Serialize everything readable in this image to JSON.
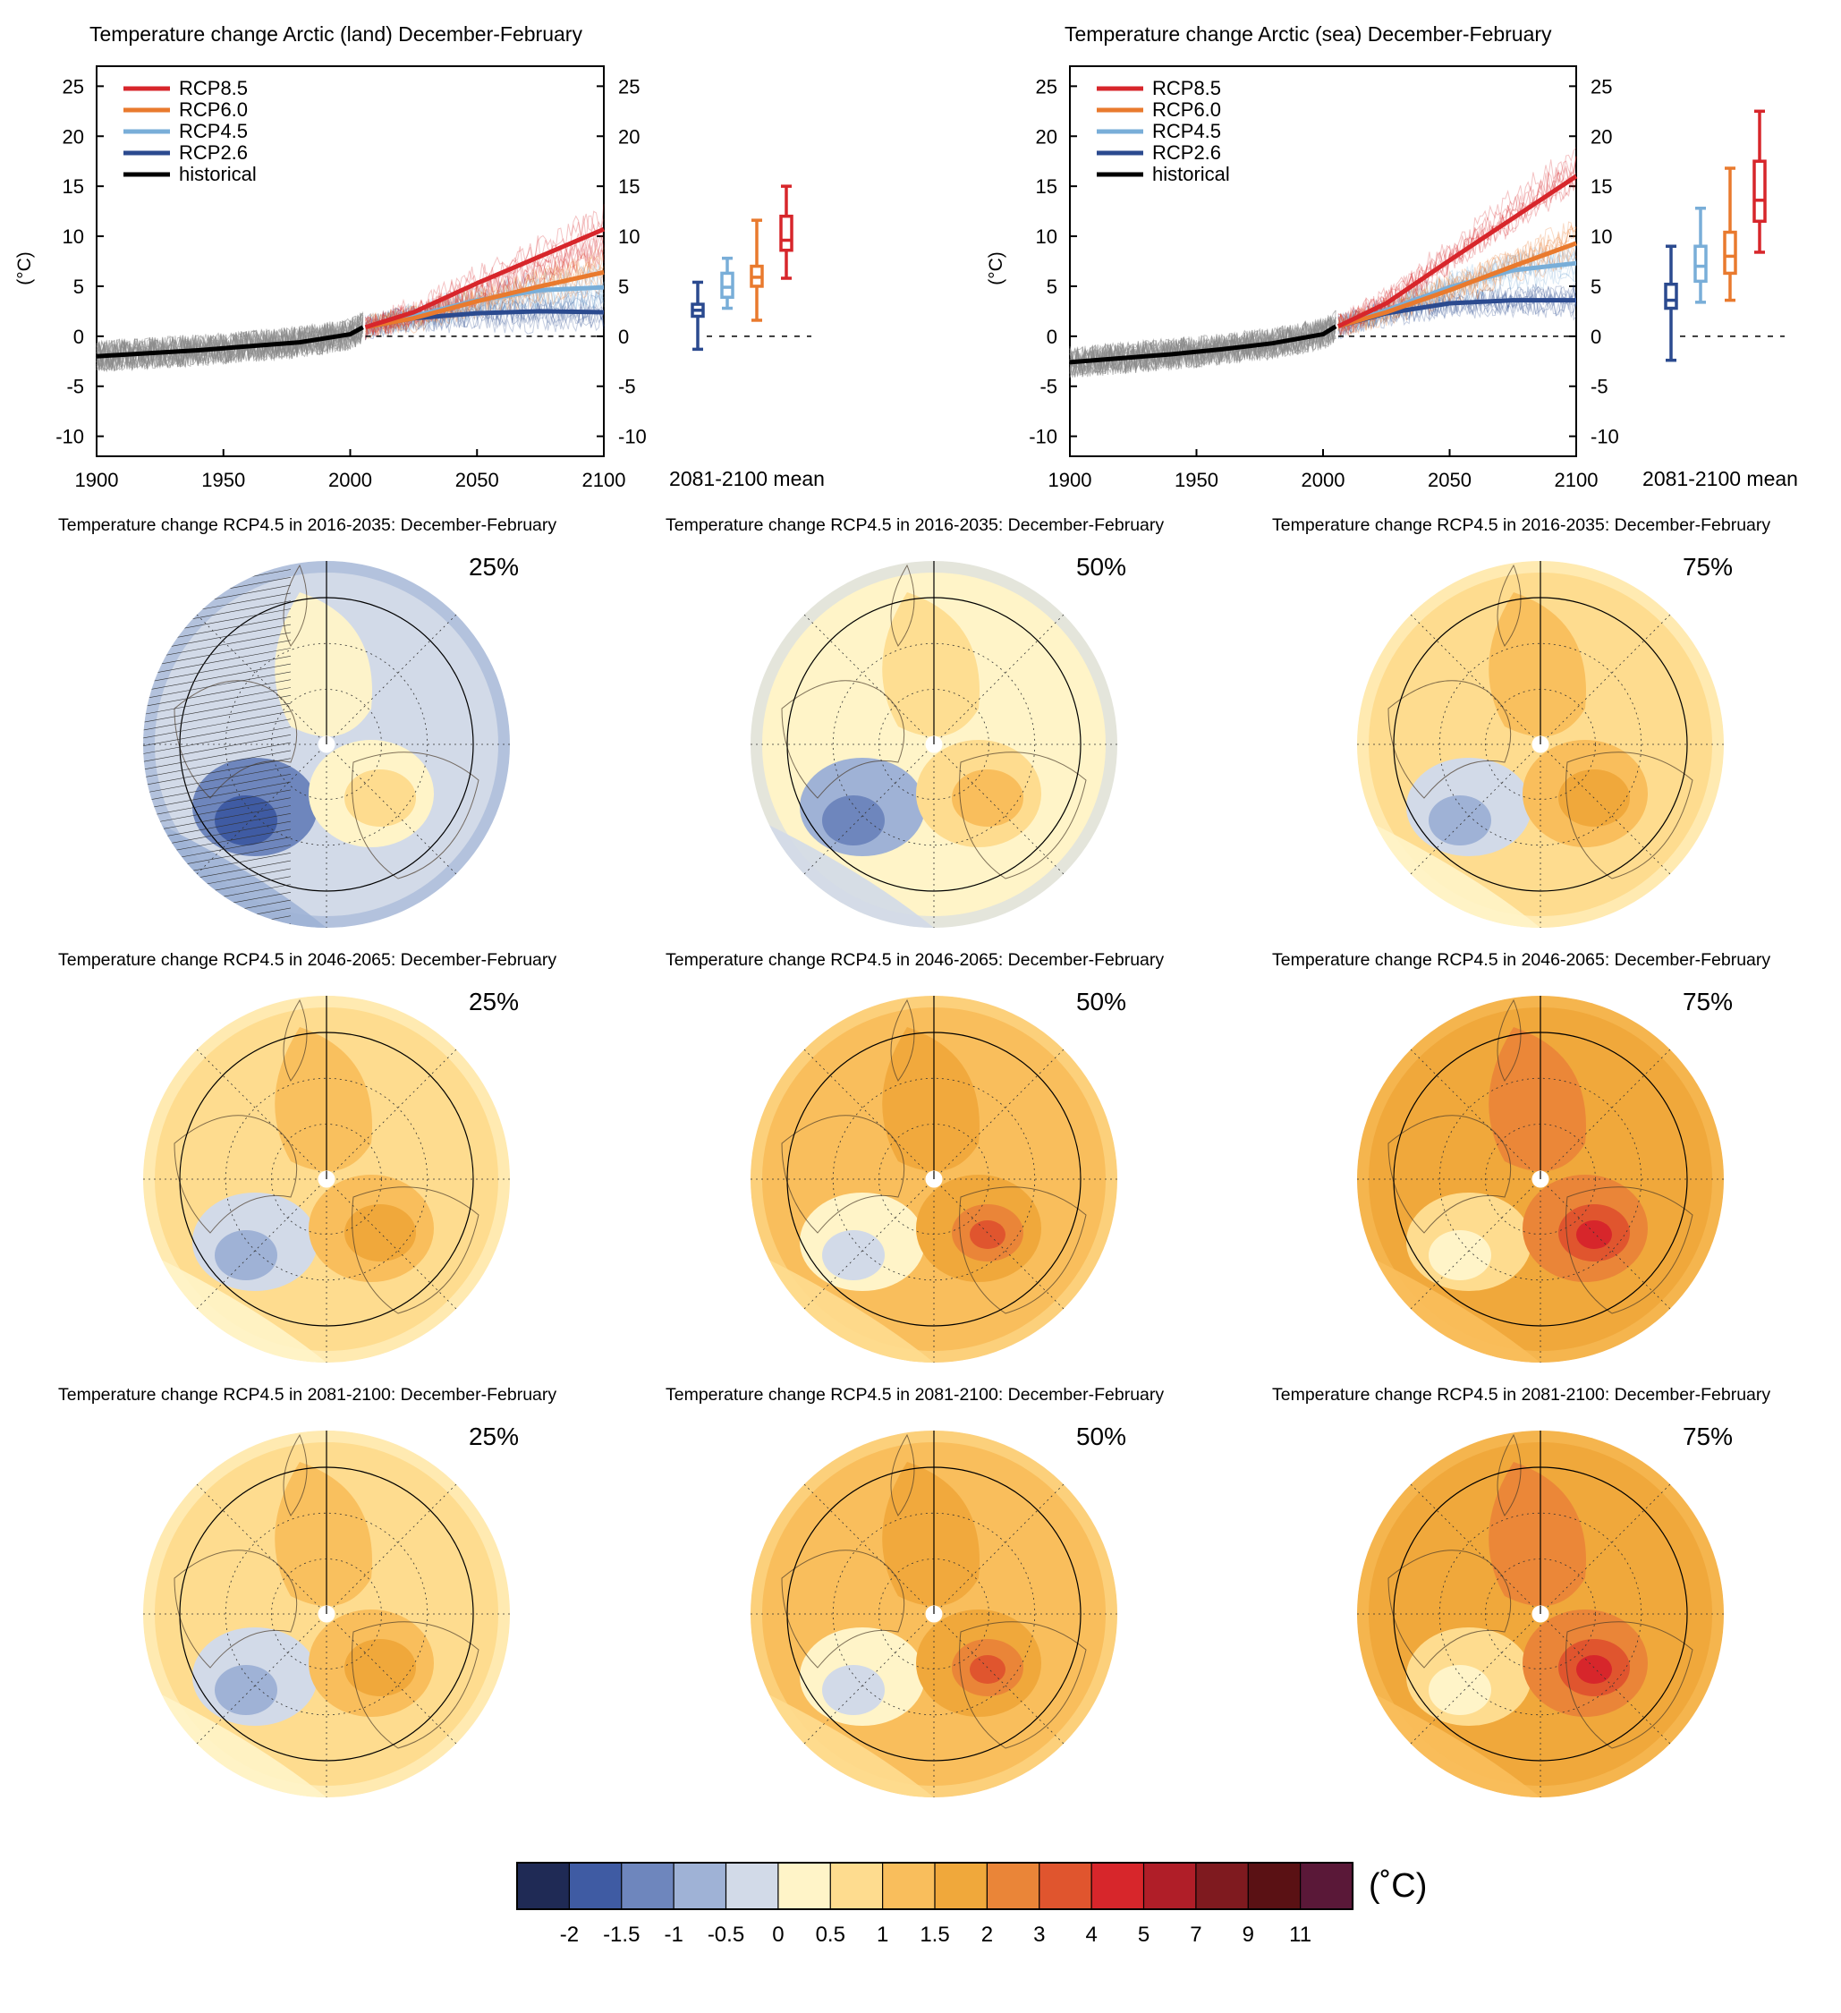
{
  "colors": {
    "rcp85": "#d7262b",
    "rcp60": "#e97a2e",
    "rcp45": "#79aed8",
    "rcp26": "#2b4a8f",
    "historical": "#000000",
    "historical_spread": "#8a8a8a"
  },
  "timeseries_panels": [
    {
      "title": "Temperature change Arctic (land) December-February",
      "ylabel": "(°C)",
      "xticks": [
        "1900",
        "1950",
        "2000",
        "2050",
        "2100"
      ],
      "yticks": [
        "25",
        "20",
        "15",
        "10",
        "5",
        "0",
        "-5",
        "-10"
      ],
      "boxplot_label": "2081-2100 mean",
      "legend": [
        "RCP8.5",
        "RCP6.0",
        "RCP4.5",
        "RCP2.6",
        "historical"
      ]
    },
    {
      "title": "Temperature change Arctic (sea) December-February",
      "ylabel": "(°C)",
      "xticks": [
        "1900",
        "1950",
        "2000",
        "2050",
        "2100"
      ],
      "yticks": [
        "25",
        "20",
        "15",
        "10",
        "5",
        "0",
        "-5",
        "-10"
      ],
      "boxplot_label": "2081-2100 mean",
      "legend": [
        "RCP8.5",
        "RCP6.0",
        "RCP4.5",
        "RCP2.6",
        "historical"
      ]
    }
  ],
  "chart_data": [
    {
      "type": "line",
      "title": "Temperature change Arctic (land) December-February",
      "ylabel": "(°C)",
      "xlim": [
        1900,
        2100
      ],
      "ylim": [
        -12,
        27
      ],
      "legend_position": "top-left",
      "series": [
        {
          "name": "historical",
          "x": [
            1900,
            1920,
            1940,
            1960,
            1980,
            2000,
            2005
          ],
          "values": [
            -2.0,
            -1.7,
            -1.4,
            -1.0,
            -0.6,
            0.2,
            0.9
          ]
        },
        {
          "name": "RCP2.6",
          "x": [
            2006,
            2025,
            2050,
            2075,
            2100
          ],
          "values": [
            0.9,
            1.8,
            2.3,
            2.5,
            2.4
          ]
        },
        {
          "name": "RCP4.5",
          "x": [
            2006,
            2025,
            2050,
            2075,
            2100
          ],
          "values": [
            0.9,
            2.0,
            3.6,
            4.6,
            4.9
          ]
        },
        {
          "name": "RCP6.0",
          "x": [
            2006,
            2025,
            2050,
            2075,
            2100
          ],
          "values": [
            0.9,
            1.8,
            3.5,
            5.0,
            6.4
          ]
        },
        {
          "name": "RCP8.5",
          "x": [
            2006,
            2025,
            2050,
            2075,
            2100
          ],
          "values": [
            0.9,
            2.4,
            5.3,
            8.0,
            10.7
          ]
        }
      ],
      "boxplots_2081_2100_mean": [
        {
          "name": "RCP2.6",
          "min": -1.3,
          "q1": 2.0,
          "median": 2.6,
          "q3": 3.2,
          "max": 5.4
        },
        {
          "name": "RCP4.5",
          "min": 2.8,
          "q1": 3.9,
          "median": 4.9,
          "q3": 6.3,
          "max": 7.8
        },
        {
          "name": "RCP6.0",
          "min": 1.6,
          "q1": 5.0,
          "median": 5.9,
          "q3": 7.0,
          "max": 11.6
        },
        {
          "name": "RCP8.5",
          "min": 5.8,
          "q1": 8.6,
          "median": 9.6,
          "q3": 12.0,
          "max": 15.0
        }
      ]
    },
    {
      "type": "line",
      "title": "Temperature change Arctic (sea) December-February",
      "ylabel": "(°C)",
      "xlim": [
        1900,
        2100
      ],
      "ylim": [
        -12,
        27
      ],
      "legend_position": "top-left",
      "series": [
        {
          "name": "historical",
          "x": [
            1900,
            1920,
            1940,
            1960,
            1980,
            2000,
            2005
          ],
          "values": [
            -2.6,
            -2.2,
            -1.8,
            -1.3,
            -0.7,
            0.2,
            1.0
          ]
        },
        {
          "name": "RCP2.6",
          "x": [
            2006,
            2025,
            2050,
            2075,
            2100
          ],
          "values": [
            1.0,
            2.3,
            3.3,
            3.6,
            3.6
          ]
        },
        {
          "name": "RCP4.5",
          "x": [
            2006,
            2025,
            2050,
            2075,
            2100
          ],
          "values": [
            1.0,
            2.6,
            4.9,
            6.6,
            7.3
          ]
        },
        {
          "name": "RCP6.0",
          "x": [
            2006,
            2025,
            2050,
            2075,
            2100
          ],
          "values": [
            1.0,
            2.4,
            4.6,
            7.0,
            9.3
          ]
        },
        {
          "name": "RCP8.5",
          "x": [
            2006,
            2025,
            2050,
            2075,
            2100
          ],
          "values": [
            1.0,
            3.3,
            7.6,
            11.8,
            16.0
          ]
        }
      ],
      "boxplots_2081_2100_mean": [
        {
          "name": "RCP2.6",
          "min": -2.4,
          "q1": 2.8,
          "median": 3.6,
          "q3": 5.2,
          "max": 9.0
        },
        {
          "name": "RCP4.5",
          "min": 3.4,
          "q1": 5.5,
          "median": 7.0,
          "q3": 9.0,
          "max": 12.8
        },
        {
          "name": "RCP6.0",
          "min": 3.6,
          "q1": 6.3,
          "median": 8.0,
          "q3": 10.4,
          "max": 16.8
        },
        {
          "name": "RCP8.5",
          "min": 8.4,
          "q1": 11.5,
          "median": 13.6,
          "q3": 17.5,
          "max": 22.5
        }
      ]
    }
  ],
  "map_panels": [
    {
      "title": "Temperature change RCP4.5 in 2016-2035: December-February",
      "percentile": "25%",
      "base_level": 4
    },
    {
      "title": "Temperature change RCP4.5 in 2016-2035: December-February",
      "percentile": "50%",
      "base_level": 5
    },
    {
      "title": "Temperature change RCP4.5 in 2016-2035: December-February",
      "percentile": "75%",
      "base_level": 6
    },
    {
      "title": "Temperature change RCP4.5 in 2046-2065: December-February",
      "percentile": "25%",
      "base_level": 6
    },
    {
      "title": "Temperature change RCP4.5 in 2046-2065: December-February",
      "percentile": "50%",
      "base_level": 7
    },
    {
      "title": "Temperature change RCP4.5 in 2046-2065: December-February",
      "percentile": "75%",
      "base_level": 8
    },
    {
      "title": "Temperature change RCP4.5 in 2081-2100: December-February",
      "percentile": "25%",
      "base_level": 6
    },
    {
      "title": "Temperature change RCP4.5 in 2081-2100: December-February",
      "percentile": "50%",
      "base_level": 7
    },
    {
      "title": "Temperature change RCP4.5 in 2081-2100: December-February",
      "percentile": "75%",
      "base_level": 8
    }
  ],
  "colorbar": {
    "unit": "(˚C)",
    "colors": [
      "#1f2a55",
      "#3f5ba3",
      "#6e86bd",
      "#9fb2d6",
      "#d2dae8",
      "#fff4c8",
      "#fedc8f",
      "#f9be5c",
      "#f0a83b",
      "#ea8538",
      "#e0552e",
      "#d7262b",
      "#b01e28",
      "#7f1a1f",
      "#5a1114",
      "#5a1838"
    ],
    "labels": [
      "-2",
      "-1.5",
      "-1",
      "-0.5",
      "0",
      "0.5",
      "1",
      "1.5",
      "2",
      "3",
      "4",
      "5",
      "7",
      "9",
      "11"
    ]
  }
}
